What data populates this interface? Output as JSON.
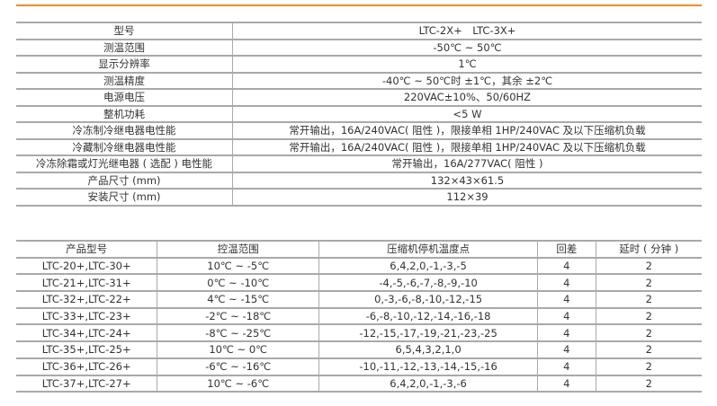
{
  "accent_color": "#f08a24",
  "spec_table": [
    {
      "label": "型号",
      "value": "LTC-2X+　LTC-3X+"
    },
    {
      "label": "测温范围",
      "value": "-50℃ ~ 50℃"
    },
    {
      "label": "显示分辨率",
      "value": "1℃"
    },
    {
      "label": "测温精度",
      "value": "-40℃ ~ 50℃时 ±1℃，其余 ±2℃"
    },
    {
      "label": "电源电压",
      "value": "220VAC±10%、50/60HZ"
    },
    {
      "label": "整机功耗",
      "value": "<5 W"
    },
    {
      "label": "冷冻制冷继电器电性能",
      "value": "常开输出，16A/240VAC( 阻性 )，限接单相 1HP/240VAC 及以下压缩机负载"
    },
    {
      "label": "冷藏制冷继电器电性能",
      "value": "常开输出，16A/240VAC( 阻性 )，限接单相 1HP/240VAC 及以下压缩机负载"
    },
    {
      "label": "冷冻除霜或灯光继电器 ( 选配 ) 电性能",
      "value": "常开输出，16A/277VAC( 阻性 )"
    },
    {
      "label": "产品尺寸 (mm)",
      "value": "132×43×61.5"
    },
    {
      "label": "安装尺寸 (mm)",
      "value": "112×39"
    }
  ],
  "model_table": {
    "headers": [
      "产品型号",
      "控温范围",
      "压缩机停机温度点",
      "回差",
      "延时 ( 分钟 )"
    ],
    "rows": [
      [
        "LTC-20+,LTC-30+",
        "10℃ ~ -5℃",
        "6,4,2,0,-1,-3,-5",
        "4",
        "2"
      ],
      [
        "LTC-21+,LTC-31+",
        "0℃ ~ -10℃",
        "-4,-5,-6,-7,-8,-9,-10",
        "4",
        "2"
      ],
      [
        "LTC-32+,LTC-22+",
        "4℃ ~ -15℃",
        "0,-3,-6,-8,-10,-12,-15",
        "4",
        "2"
      ],
      [
        "LTC-33+,LTC-23+",
        "-2℃ ~ -18℃",
        "-6,-8,-10,-12,-14,-16,-18",
        "4",
        "2"
      ],
      [
        "LTC-34+,LTC-24+",
        "-8℃ ~ -25℃",
        "-12,-15,-17,-19,-21,-23,-25",
        "4",
        "2"
      ],
      [
        "LTC-35+,LTC-25+",
        "10℃ ~ 0℃",
        "6,5,4,3,2,1,0",
        "4",
        "2"
      ],
      [
        "LTC-36+,LTC-26+",
        "-6℃ ~ -16℃",
        "-10,-11,-12,-13,-14,-15,-16",
        "4",
        "2"
      ],
      [
        "LTC-37+,LTC-27+",
        "10℃ ~ -6℃",
        "6,4,2,0,-1,-3,-6",
        "4",
        "2"
      ]
    ]
  }
}
